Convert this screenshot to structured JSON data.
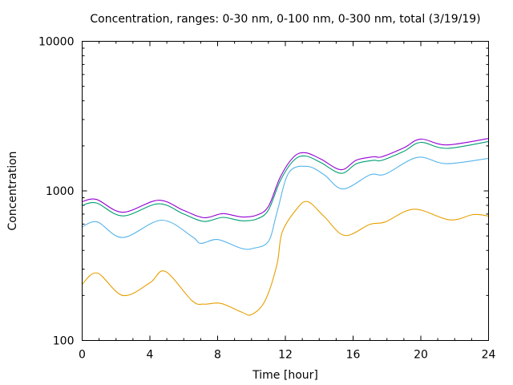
{
  "chart_data": {
    "type": "line",
    "title": "Concentration, ranges: 0-30 nm, 0-100 nm, 0-300 nm, total (3/19/19)",
    "xlabel": "Time [hour]",
    "ylabel": "Concentration",
    "xlim": [
      0,
      24
    ],
    "ylim": [
      100,
      10000
    ],
    "yscale": "log",
    "grid": false,
    "x_ticks": [
      "0",
      "4",
      "8",
      "12",
      "16",
      "20",
      "24"
    ],
    "y_ticks": [
      "100",
      "1000",
      "10000"
    ],
    "series": [
      {
        "name": "0-30 nm",
        "color": "#e69f00",
        "x": [
          0,
          0.9,
          2.4,
          4,
          4.9,
          6.5,
          7.2,
          8.2,
          9.4,
          10,
          10.8,
          11.5,
          11.8,
          12.6,
          13.3,
          14.3,
          15.5,
          17,
          17.9,
          19.6,
          21.7,
          23.1,
          24
        ],
        "y": [
          238,
          282,
          200,
          243,
          290,
          184,
          175,
          177,
          155,
          149,
          184,
          320,
          524,
          740,
          849,
          673,
          504,
          598,
          620,
          755,
          640,
          695,
          678
        ]
      },
      {
        "name": "0-100 nm",
        "color": "#56b4e9",
        "x": [
          0,
          0.9,
          2.4,
          4.7,
          6.5,
          7,
          8,
          9.4,
          10.1,
          11,
          11.5,
          12.2,
          13.3,
          14.3,
          15.4,
          17,
          17.9,
          19.8,
          21.5,
          24
        ],
        "y": [
          575,
          620,
          488,
          637,
          494,
          446,
          473,
          413,
          413,
          460,
          712,
          1320,
          1458,
          1280,
          1030,
          1280,
          1295,
          1675,
          1520,
          1650
        ]
      },
      {
        "name": "0-300 nm",
        "color": "#009e73",
        "x": [
          0,
          0.85,
          2.4,
          4.5,
          6,
          7.2,
          8.3,
          9.4,
          10.3,
          11,
          11.7,
          12.5,
          13.2,
          14.1,
          15.3,
          16.2,
          17.2,
          17.7,
          19,
          20,
          21.5,
          24
        ],
        "y": [
          800,
          830,
          680,
          820,
          700,
          625,
          665,
          632,
          648,
          745,
          1170,
          1600,
          1710,
          1545,
          1310,
          1520,
          1600,
          1600,
          1840,
          2110,
          1925,
          2140
        ]
      },
      {
        "name": "total",
        "color": "#9400d3",
        "x": [
          0,
          0.85,
          2.4,
          4.5,
          6,
          7.2,
          8.3,
          9.4,
          10.3,
          11,
          11.7,
          12.5,
          13.2,
          14.1,
          15.3,
          16.2,
          17.2,
          17.7,
          19,
          20,
          21.5,
          24
        ],
        "y": [
          847,
          876,
          720,
          866,
          740,
          662,
          705,
          670,
          688,
          788,
          1237,
          1690,
          1800,
          1630,
          1386,
          1606,
          1690,
          1690,
          1940,
          2220,
          2030,
          2240
        ]
      }
    ]
  }
}
